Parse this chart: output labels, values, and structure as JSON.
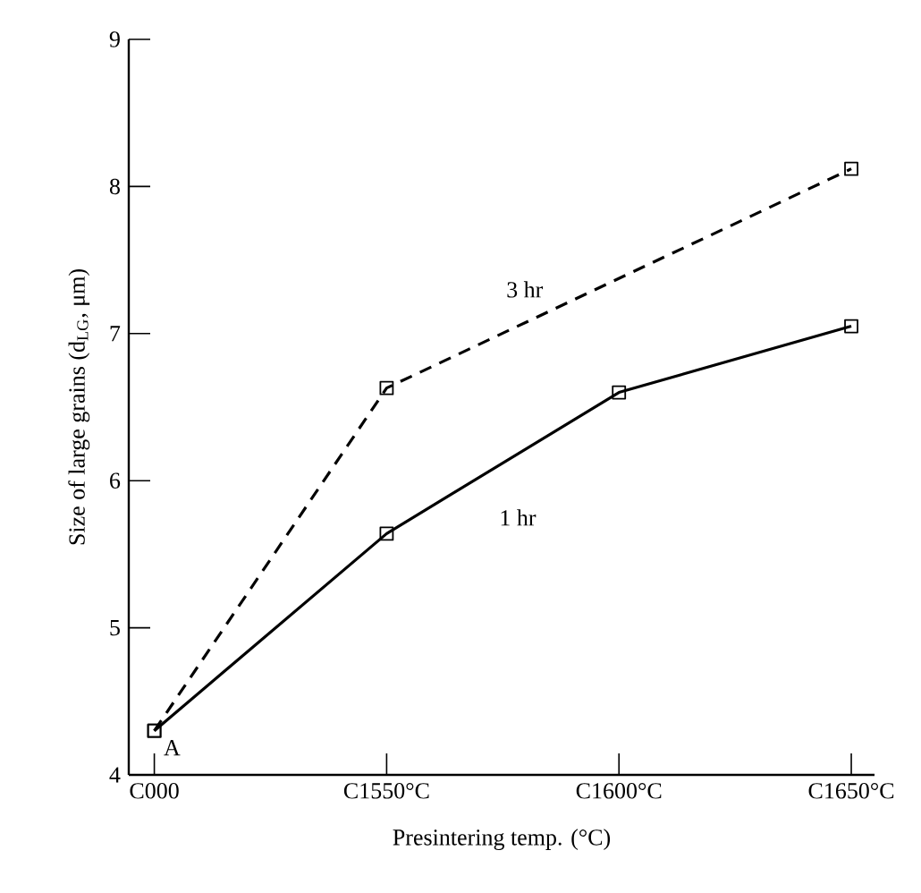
{
  "chart_data": {
    "type": "line",
    "categories": [
      "C000",
      "C1550°C",
      "C1600°C",
      "C1650°C"
    ],
    "series": [
      {
        "name": "1 hr",
        "color": "#000000",
        "line_style": "solid",
        "values": [
          4.3,
          5.64,
          6.6,
          7.05
        ]
      },
      {
        "name": "3 hr",
        "color": "#000000",
        "line_style": "dashed",
        "values": [
          4.3,
          6.63,
          null,
          8.12
        ]
      }
    ],
    "xlabel": "Presintering temp. (°C)",
    "ylabel": "Size of large grains (d$_{LG}$, μm)",
    "ylim": [
      4,
      9
    ],
    "yticks": [
      4,
      5,
      6,
      7,
      8,
      9
    ],
    "marker": "square",
    "annotations": [
      {
        "text": "A",
        "x": "C000",
        "y": 4.3
      }
    ]
  }
}
